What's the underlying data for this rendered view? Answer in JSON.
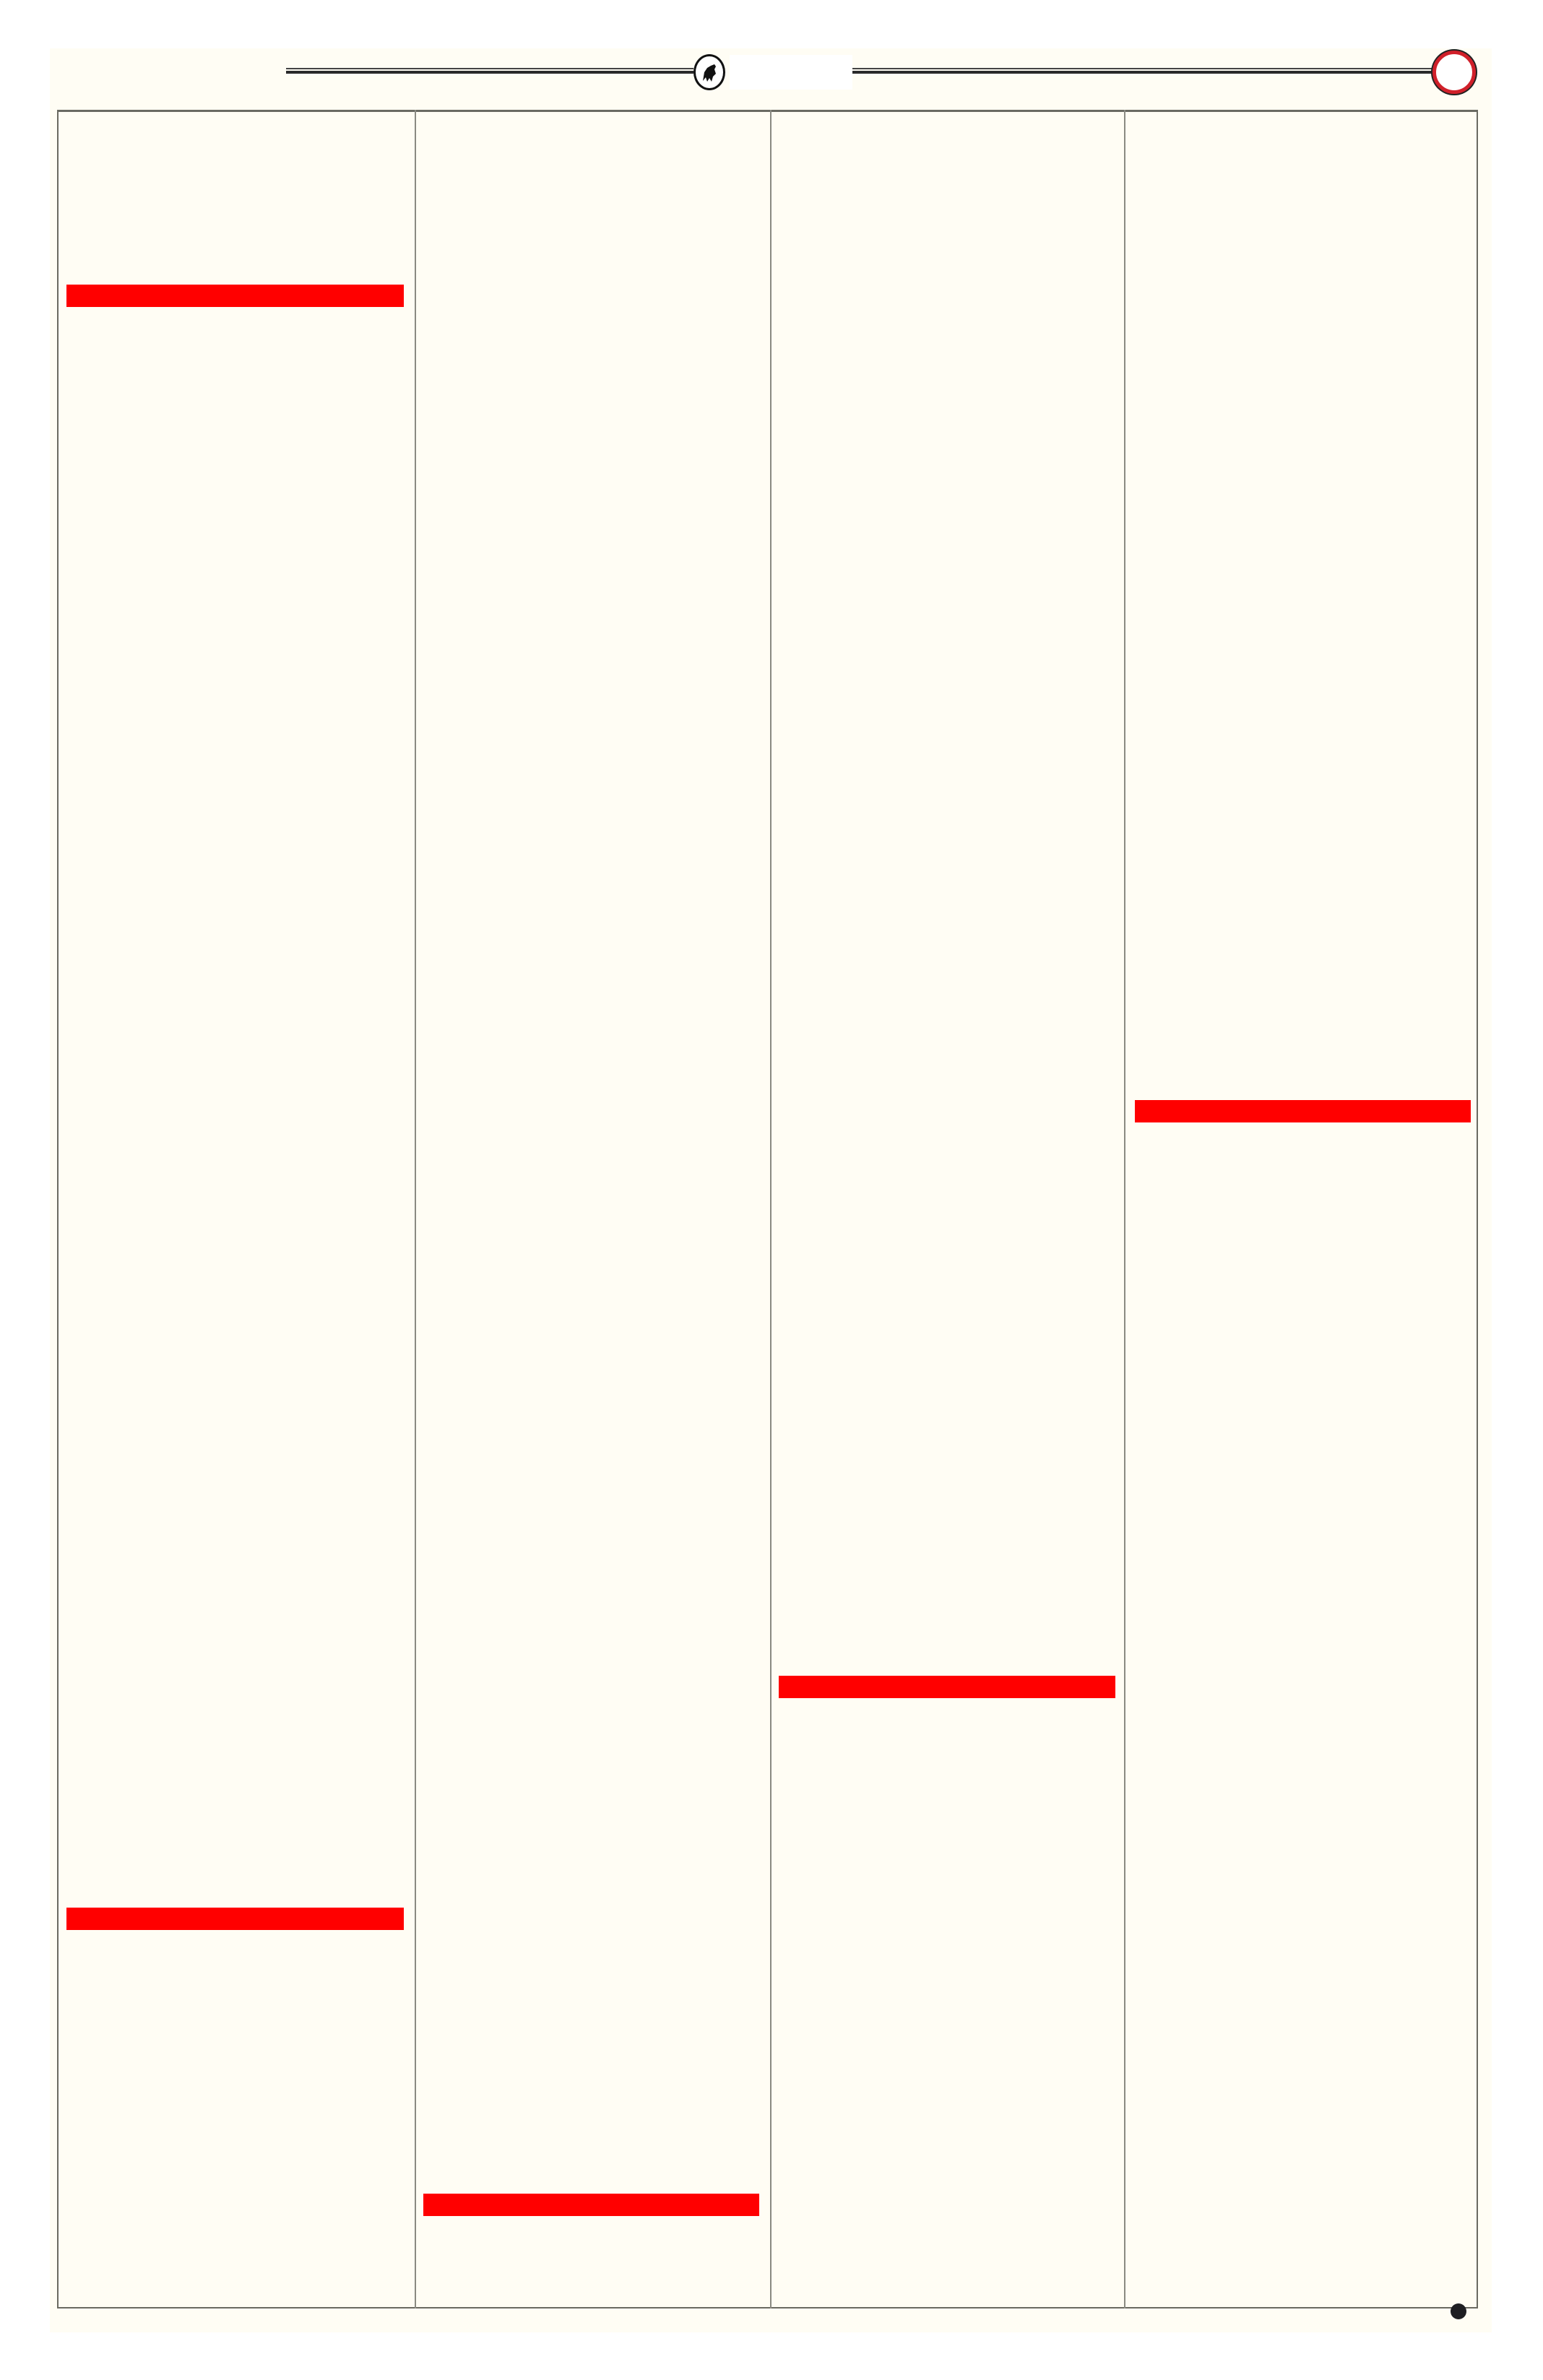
{
  "colors": {
    "page_background": "#fffdf4",
    "highlight_bar": "#ff0000",
    "accent_circle": "#d0202a",
    "rule": "#2a2a2a"
  },
  "header": {
    "emblem_icon": "animal-emblem-icon",
    "corner_icon": "red-circle-icon"
  },
  "columns": 4,
  "footer": {
    "marker_icon": "dot-icon"
  }
}
